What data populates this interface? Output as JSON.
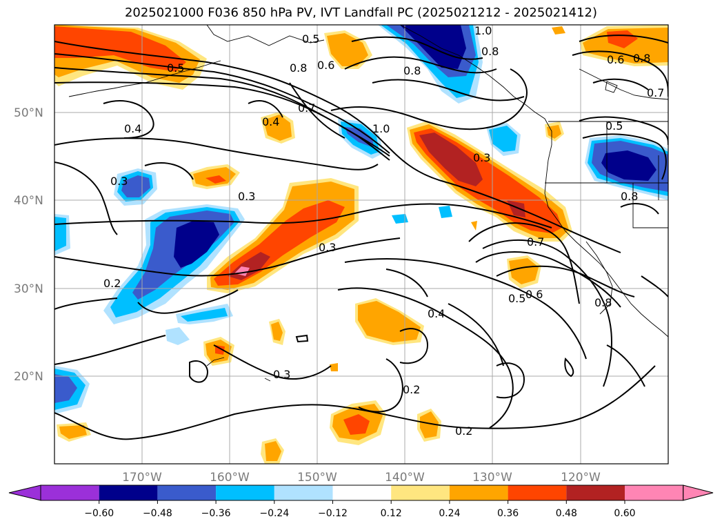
{
  "title": "2025021000 F036 850 hPa PV, IVT Landfall PC (2025021212 - 2025021412)",
  "lat_labels": [
    "50°N",
    "40°N",
    "30°N",
    "20°N"
  ],
  "lon_labels": [
    "170°W",
    "160°W",
    "150°W",
    "140°W",
    "130°W",
    "120°W"
  ],
  "contour_labels": [
    "0.5",
    "0.5",
    "0.6",
    "0.8",
    "0.7",
    "1.0",
    "1.0",
    "0.8",
    "0.8",
    "0.4",
    "0.4",
    "0.3",
    "0.3",
    "0.3",
    "0.2",
    "0.3",
    "0.4",
    "0.3",
    "0.2",
    "0.2",
    "0.5",
    "0.6",
    "0.8",
    "0.7",
    "0.6",
    "0.5",
    "0.8",
    "0.7",
    "0.8"
  ],
  "colorbar": {
    "ticks": [
      "−0.60",
      "−0.48",
      "−0.36",
      "−0.24",
      "−0.12",
      "0.12",
      "0.24",
      "0.36",
      "0.48",
      "0.60"
    ],
    "colors": [
      "#9b30d9",
      "#00008b",
      "#3a5bcc",
      "#00bfff",
      "#b0e2ff",
      "#ffffff",
      "#ffe680",
      "#ffa500",
      "#ff4500",
      "#b22222",
      "#ff85b4",
      "#ff85b4"
    ]
  },
  "shading_colors": {
    "neg_1": "#00008b",
    "neg_2": "#3a5bcc",
    "neg_3": "#00bfff",
    "neg_4": "#b0e2ff",
    "pos_1": "#ffe680",
    "pos_2": "#ffa500",
    "pos_3": "#ff4500",
    "pos_4": "#b22222",
    "pos_5": "#ff85b4"
  }
}
